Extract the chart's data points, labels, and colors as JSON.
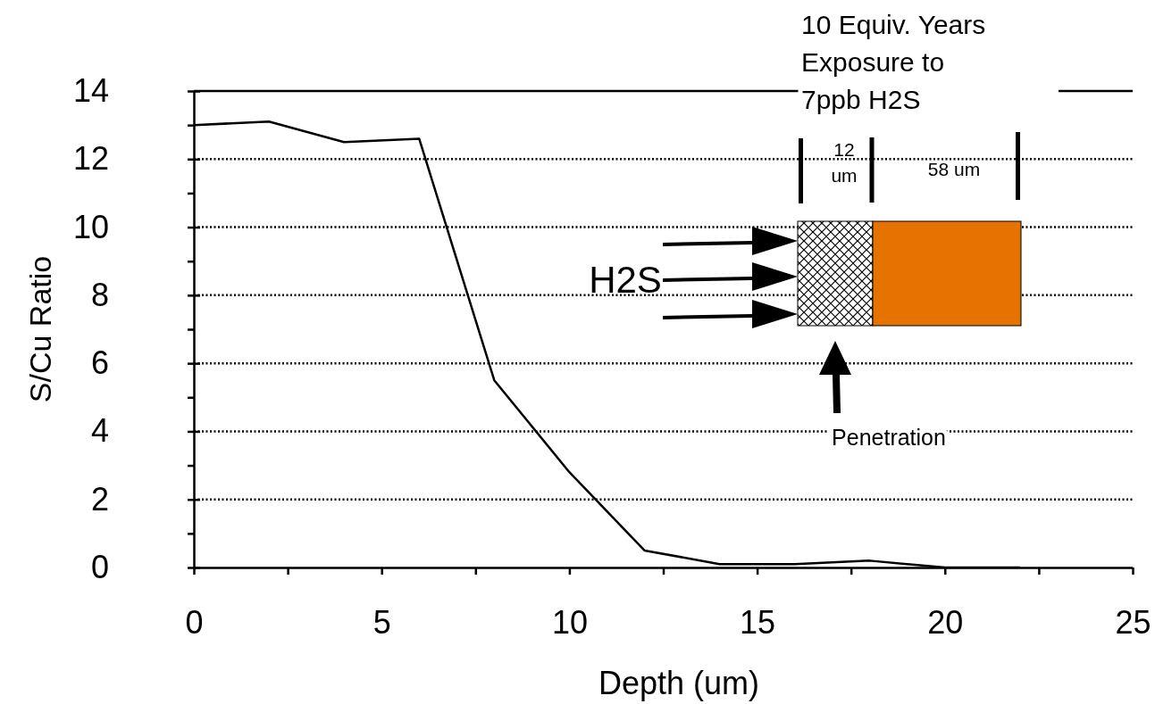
{
  "chart_data": {
    "type": "line",
    "xlabel": "Depth (um)",
    "ylabel": "S/Cu Ratio",
    "x": [
      0,
      2,
      4,
      6,
      8,
      10,
      12,
      14,
      16,
      18,
      20,
      22
    ],
    "series": [
      {
        "color": "#000000",
        "values": [
          13.0,
          13.1,
          12.5,
          12.6,
          5.5,
          2.8,
          0.5,
          0.1,
          0.1,
          0.2,
          0,
          0
        ]
      }
    ],
    "xlim": [
      0,
      25
    ],
    "ylim": [
      0,
      14
    ],
    "xticks": [
      0,
      {
        "value": 2.5,
        "label": null
      },
      5,
      {
        "value": 7.5,
        "label": null
      },
      10,
      {
        "value": 12.5,
        "label": null
      },
      15,
      {
        "value": 17.5,
        "label": null
      },
      20,
      {
        "value": 22.5,
        "label": null
      },
      25
    ],
    "yticks": [
      0,
      {
        "value": 1,
        "label": null
      },
      2,
      {
        "value": 3,
        "label": null
      },
      4,
      {
        "value": 5,
        "label": null
      },
      6,
      {
        "value": 7,
        "label": null
      },
      8,
      {
        "value": 9,
        "label": null
      },
      10,
      {
        "value": 11,
        "label": null
      },
      12,
      {
        "value": 13,
        "label": null
      },
      14
    ],
    "grid": "y",
    "marker": "none",
    "line_style": "solid",
    "annotations": [
      "10 Equiv. Years Exposure to 7ppb H2S",
      "12 um",
      "58 um",
      "H2S",
      "Penetration"
    ]
  }
}
